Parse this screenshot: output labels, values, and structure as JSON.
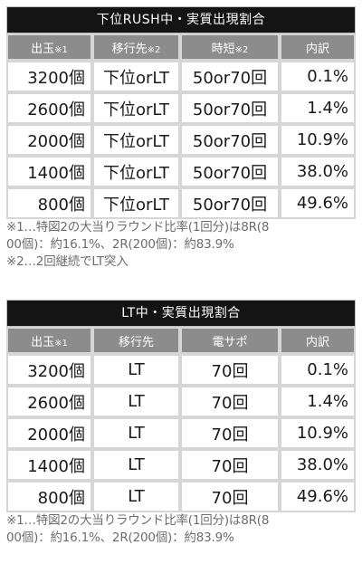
{
  "table1": {
    "title": "下位RUSH中・実質出現割合",
    "headers": [
      {
        "label": "出玉",
        "note": "※1"
      },
      {
        "label": "移行先",
        "note": "※2"
      },
      {
        "label": "時短",
        "note": "※2"
      },
      {
        "label": "内訳",
        "note": ""
      }
    ],
    "rows": [
      [
        "3200個",
        "下位orLT",
        "50or70回",
        "0.1%"
      ],
      [
        "2600個",
        "下位orLT",
        "50or70回",
        "1.4%"
      ],
      [
        "2000個",
        "下位orLT",
        "50or70回",
        "10.9%"
      ],
      [
        "1400個",
        "下位orLT",
        "50or70回",
        "38.0%"
      ],
      [
        "800個",
        "下位orLT",
        "50or70回",
        "49.6%"
      ]
    ],
    "footnotes": [
      "※1…特図2の大当りラウンド比率(1回分)は8R(8",
      "00個)：約16.1%、2R(200個)：約83.9%",
      "※2…2回継続でLT突入"
    ]
  },
  "table2": {
    "title": "LT中・実質出現割合",
    "headers": [
      {
        "label": "出玉",
        "note": "※1"
      },
      {
        "label": "移行先",
        "note": ""
      },
      {
        "label": "電サポ",
        "note": ""
      },
      {
        "label": "内訳",
        "note": ""
      }
    ],
    "rows": [
      [
        "3200個",
        "LT",
        "70回",
        "0.1%"
      ],
      [
        "2600個",
        "LT",
        "70回",
        "1.4%"
      ],
      [
        "2000個",
        "LT",
        "70回",
        "10.9%"
      ],
      [
        "1400個",
        "LT",
        "70回",
        "38.0%"
      ],
      [
        "800個",
        "LT",
        "70回",
        "49.6%"
      ]
    ],
    "footnotes": [
      "※1…特図2の大当りラウンド比率(1回分)は8R(8",
      "00個)：約16.1%、2R(200個)：約83.9%"
    ]
  }
}
